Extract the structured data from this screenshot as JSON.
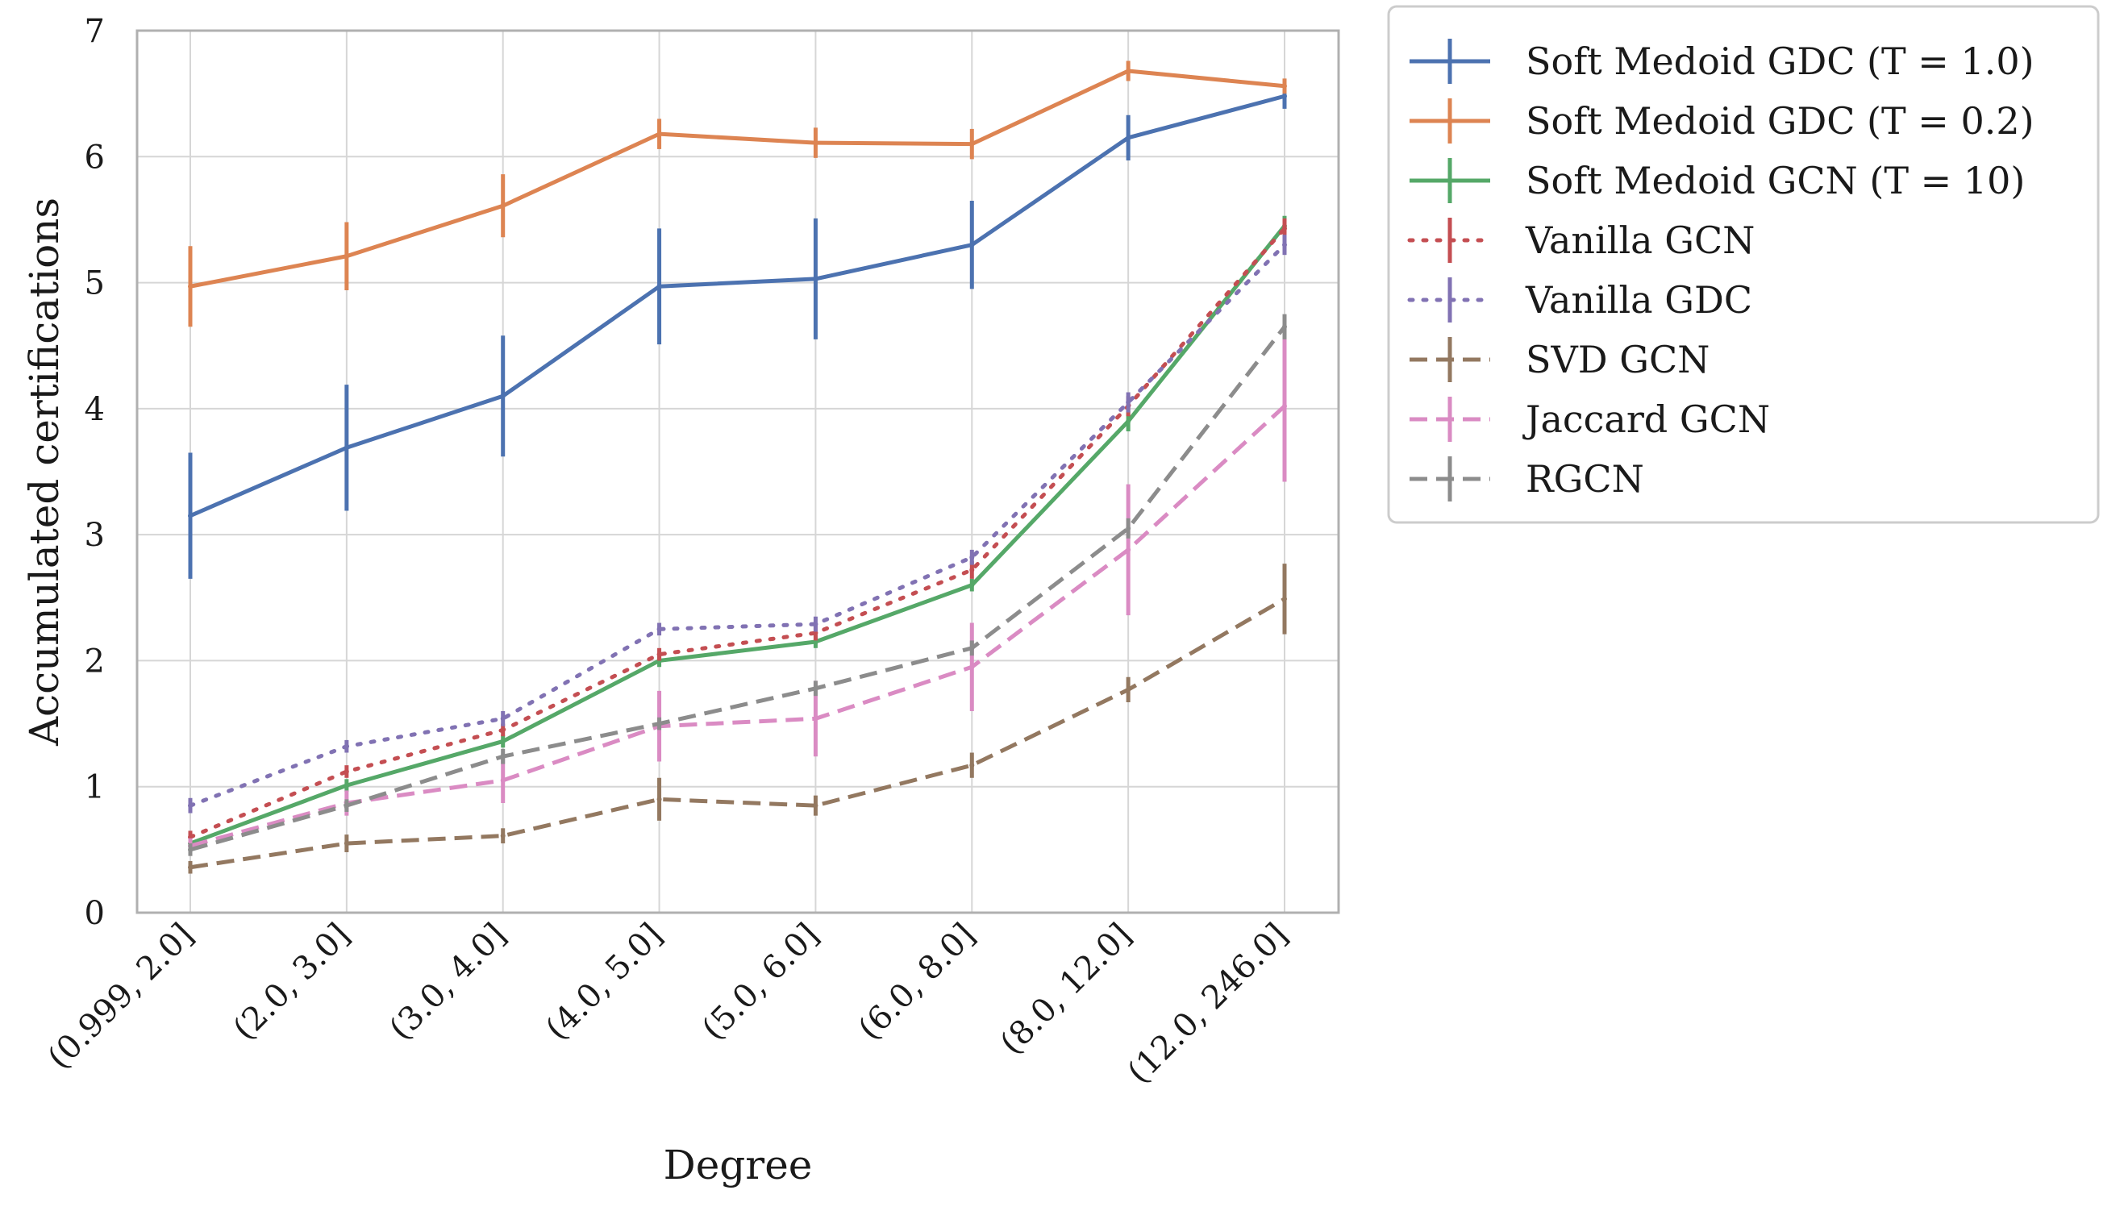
{
  "chart_data": {
    "type": "line",
    "title": "",
    "xlabel": "Degree",
    "ylabel": "Accumulated certifications",
    "ylim": [
      0,
      7
    ],
    "yticks": [
      0,
      1,
      2,
      3,
      4,
      5,
      6,
      7
    ],
    "grid": true,
    "legend_position": "outside-right-top",
    "categories": [
      "(0.999, 2.0]",
      "(2.0, 3.0]",
      "(3.0, 4.0]",
      "(4.0, 5.0]",
      "(5.0, 6.0]",
      "(6.0, 8.0]",
      "(8.0, 12.0]",
      "(12.0, 246.0]"
    ],
    "series": [
      {
        "name": "Soft Medoid GDC (T = 1.0)",
        "color": "#4c72b0",
        "style": "solid",
        "values": [
          3.15,
          3.69,
          4.1,
          4.97,
          5.03,
          5.3,
          6.15,
          6.48
        ],
        "errors": [
          0.5,
          0.5,
          0.48,
          0.46,
          0.48,
          0.35,
          0.18,
          0.1
        ]
      },
      {
        "name": "Soft Medoid GDC (T = 0.2)",
        "color": "#dd8452",
        "style": "solid",
        "values": [
          4.97,
          5.21,
          5.61,
          6.18,
          6.11,
          6.1,
          6.68,
          6.56
        ],
        "errors": [
          0.32,
          0.27,
          0.25,
          0.12,
          0.12,
          0.12,
          0.08,
          0.06
        ]
      },
      {
        "name": "Soft Medoid GCN (T = 10)",
        "color": "#55a868",
        "style": "solid",
        "values": [
          0.55,
          1.01,
          1.36,
          2.0,
          2.15,
          2.6,
          3.9,
          5.45
        ],
        "errors": [
          0.05,
          0.05,
          0.05,
          0.05,
          0.05,
          0.05,
          0.08,
          0.08
        ]
      },
      {
        "name": "Vanilla GCN",
        "color": "#c44e52",
        "style": "dotted",
        "values": [
          0.6,
          1.12,
          1.45,
          2.05,
          2.22,
          2.72,
          4.02,
          5.43
        ],
        "errors": [
          0.05,
          0.05,
          0.05,
          0.05,
          0.06,
          0.07,
          0.08,
          0.08
        ]
      },
      {
        "name": "Vanilla GDC",
        "color": "#8172b3",
        "style": "dotted",
        "values": [
          0.85,
          1.32,
          1.54,
          2.25,
          2.29,
          2.82,
          4.05,
          5.3
        ],
        "errors": [
          0.06,
          0.05,
          0.06,
          0.05,
          0.06,
          0.06,
          0.08,
          0.08
        ]
      },
      {
        "name": "SVD GCN",
        "color": "#937860",
        "style": "dashed",
        "values": [
          0.36,
          0.55,
          0.61,
          0.9,
          0.85,
          1.17,
          1.77,
          2.49
        ],
        "errors": [
          0.05,
          0.07,
          0.06,
          0.17,
          0.08,
          0.1,
          0.1,
          0.28
        ]
      },
      {
        "name": "Jaccard GCN",
        "color": "#da8bc3",
        "style": "dashed",
        "values": [
          0.53,
          0.87,
          1.05,
          1.48,
          1.54,
          1.95,
          2.88,
          4.02
        ],
        "errors": [
          0.06,
          0.1,
          0.18,
          0.28,
          0.3,
          0.35,
          0.52,
          0.6
        ]
      },
      {
        "name": "RGCN",
        "color": "#8c8c8c",
        "style": "dashed",
        "values": [
          0.5,
          0.85,
          1.24,
          1.5,
          1.78,
          2.1,
          3.05,
          4.65
        ],
        "errors": [
          0.05,
          0.05,
          0.06,
          0.05,
          0.06,
          0.06,
          0.08,
          0.1
        ]
      }
    ]
  }
}
